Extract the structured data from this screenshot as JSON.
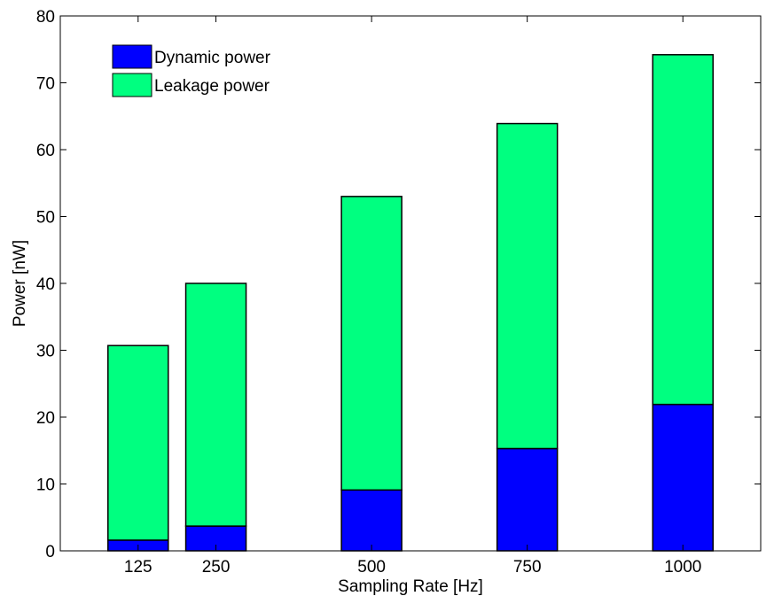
{
  "chart_data": {
    "type": "bar",
    "stacked": true,
    "x": [
      125,
      250,
      500,
      750,
      1000
    ],
    "categories": [
      "125",
      "250",
      "500",
      "750",
      "1000"
    ],
    "series": [
      {
        "name": "Dynamic power",
        "values": [
          1.6,
          3.7,
          9.1,
          15.3,
          21.9
        ],
        "color": "#0000ff"
      },
      {
        "name": "Leakage power",
        "values": [
          29.1,
          36.3,
          43.9,
          48.6,
          52.3
        ],
        "color": "#00ff80"
      }
    ],
    "title": "",
    "xlabel": "Sampling Rate [Hz]",
    "ylabel": "Power [nW]",
    "xlim": [
      0,
      1125
    ],
    "ylim": [
      0,
      80
    ],
    "yticks": [
      0,
      10,
      20,
      30,
      40,
      50,
      60,
      70,
      80
    ],
    "grid": false,
    "legend_position": "top-left"
  }
}
